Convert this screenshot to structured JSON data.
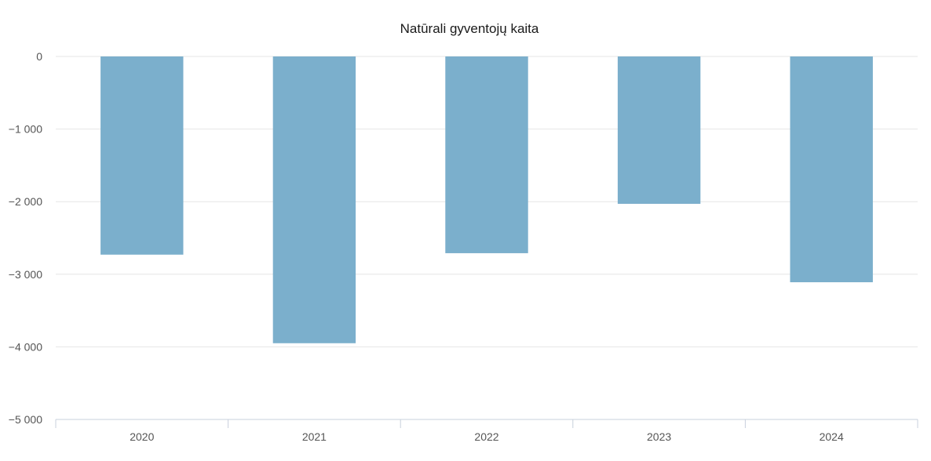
{
  "chart_data": {
    "type": "bar",
    "title": "Natūrali gyventojų kaita",
    "xlabel": "",
    "ylabel": "",
    "categories": [
      "2020",
      "2021",
      "2022",
      "2023",
      "2024"
    ],
    "values": [
      -2730,
      -3950,
      -2710,
      -2030,
      -3110
    ],
    "ylim": [
      -5000,
      0
    ],
    "yticks": [
      0,
      -1000,
      -2000,
      -3000,
      -4000,
      -5000
    ],
    "ytick_labels": [
      "0",
      "−1 000",
      "−2 000",
      "−3 000",
      "−4 000",
      "−5 000"
    ],
    "bar_color": "#7bafcc",
    "grid": true,
    "legend": "none"
  }
}
